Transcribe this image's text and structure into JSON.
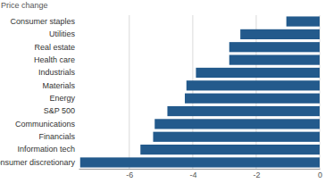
{
  "chart_data": {
    "type": "bar",
    "orientation": "horizontal",
    "title": "Price change",
    "categories": [
      "Consumer staples",
      "Utilities",
      "Real estate",
      "Health care",
      "Industrials",
      "Materials",
      "Energy",
      "S&P 500",
      "Communications",
      "Financials",
      "Information tech",
      "Consumer discretionary"
    ],
    "values": [
      -1.05,
      -2.5,
      -2.85,
      -2.85,
      -3.9,
      -4.2,
      -4.25,
      -4.8,
      -5.2,
      -5.25,
      -5.65,
      -7.55
    ],
    "color": "#235a8c",
    "xlim": [
      -7.6,
      0
    ],
    "xticks": [
      -6,
      -4,
      -2,
      0
    ],
    "grid": true
  }
}
